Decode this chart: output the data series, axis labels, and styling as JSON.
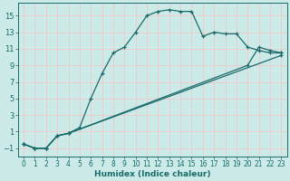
{
  "xlabel": "Humidex (Indice chaleur)",
  "bg_color": "#cceae7",
  "line_color": "#1a6b6b",
  "grid_color": "#f0c8c8",
  "xlim": [
    -0.5,
    23.5
  ],
  "ylim": [
    -2.0,
    16.5
  ],
  "xticks": [
    0,
    1,
    2,
    3,
    4,
    5,
    6,
    7,
    8,
    9,
    10,
    11,
    12,
    13,
    14,
    15,
    16,
    17,
    18,
    19,
    20,
    21,
    22,
    23
  ],
  "yticks": [
    -1,
    1,
    3,
    5,
    7,
    9,
    11,
    13,
    15
  ],
  "line1_x": [
    0,
    1,
    2,
    3,
    4,
    5,
    6,
    7,
    8,
    9,
    10,
    11,
    12,
    13,
    14,
    15,
    16,
    17,
    18,
    19,
    20,
    21,
    22,
    23
  ],
  "line1_y": [
    -0.5,
    -1,
    -1,
    0.5,
    0.8,
    1.5,
    5.0,
    8.0,
    10.5,
    11.2,
    13.0,
    15.0,
    15.5,
    15.7,
    15.5,
    15.5,
    12.5,
    13.0,
    12.8,
    12.8,
    11.2,
    10.8,
    10.5,
    10.5
  ],
  "line2_x": [
    0,
    1,
    2,
    3,
    4,
    23
  ],
  "line2_y": [
    -0.5,
    -1,
    -1,
    0.5,
    0.8,
    10.2
  ],
  "line3_x": [
    0,
    1,
    2,
    3,
    4,
    20,
    21,
    22,
    23
  ],
  "line3_y": [
    -0.5,
    -1,
    -1,
    0.5,
    0.8,
    9.0,
    11.2,
    10.8,
    10.5
  ]
}
